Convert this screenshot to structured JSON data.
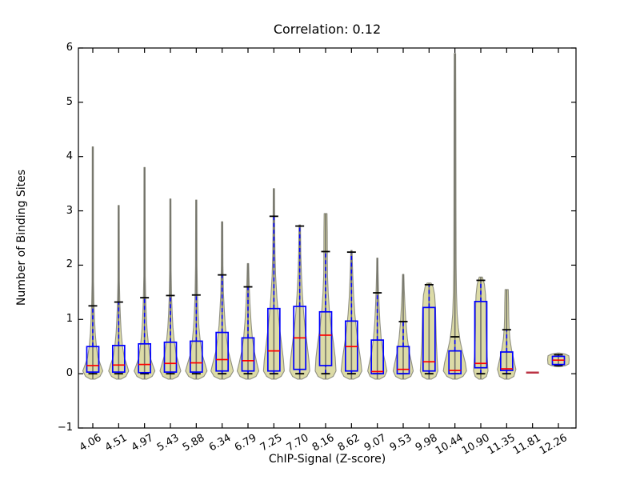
{
  "figure": {
    "title": "Correlation: 0.12",
    "xlabel": "ChIP-Signal (Z-score)",
    "ylabel": "Number of Binding Sites"
  },
  "colors": {
    "violin_fill": "#dcdba6",
    "violin_edge": "#8f8f82",
    "center_line": "#72726a",
    "box": "#0000ff",
    "median": "#ff0000",
    "cap": "#000000",
    "lone_median": "#bb3344",
    "spine": "#000000"
  },
  "chart_data": {
    "type": "violin-box",
    "title": "Correlation: 0.12",
    "xlabel": "ChIP-Signal (Z-score)",
    "ylabel": "Number of Binding Sites",
    "ylim": [
      -1,
      6
    ],
    "yticks": [
      -1,
      0,
      1,
      2,
      3,
      4,
      5,
      6
    ],
    "grid": false,
    "series": [
      {
        "label": "4.06",
        "violin_max": 4.18,
        "whisker_hi": 1.25,
        "q3": 0.5,
        "median": 0.15,
        "q1": 0.03,
        "whisker_lo": 0,
        "profile": [
          [
            -0.1,
            3
          ],
          [
            -0.05,
            9
          ],
          [
            0.05,
            12.5
          ],
          [
            0.15,
            10
          ],
          [
            0.3,
            6.5
          ],
          [
            0.5,
            4.5
          ],
          [
            0.75,
            3
          ],
          [
            1.0,
            2.2
          ],
          [
            1.3,
            1.4
          ],
          [
            1.7,
            0.9
          ],
          [
            2.5,
            0.8
          ],
          [
            4.18,
            0.7
          ]
        ]
      },
      {
        "label": "4.51",
        "violin_max": 3.1,
        "whisker_hi": 1.32,
        "q3": 0.52,
        "median": 0.16,
        "q1": 0.03,
        "whisker_lo": 0,
        "profile": [
          [
            -0.1,
            3
          ],
          [
            -0.05,
            9
          ],
          [
            0.05,
            12.5
          ],
          [
            0.15,
            10.5
          ],
          [
            0.3,
            7
          ],
          [
            0.5,
            4.8
          ],
          [
            0.75,
            3.2
          ],
          [
            1.0,
            2.3
          ],
          [
            1.3,
            1.5
          ],
          [
            1.7,
            0.9
          ],
          [
            2.4,
            0.8
          ],
          [
            3.1,
            0.7
          ]
        ]
      },
      {
        "label": "4.97",
        "violin_max": 3.8,
        "whisker_hi": 1.4,
        "q3": 0.55,
        "median": 0.17,
        "q1": 0.02,
        "whisker_lo": 0,
        "profile": [
          [
            -0.1,
            3
          ],
          [
            -0.05,
            9.5
          ],
          [
            0.05,
            13
          ],
          [
            0.15,
            10.5
          ],
          [
            0.3,
            7
          ],
          [
            0.55,
            4.8
          ],
          [
            0.8,
            3.2
          ],
          [
            1.05,
            2.3
          ],
          [
            1.35,
            1.5
          ],
          [
            1.8,
            0.9
          ],
          [
            2.6,
            0.8
          ],
          [
            3.8,
            0.7
          ]
        ]
      },
      {
        "label": "5.43",
        "violin_max": 3.22,
        "whisker_hi": 1.44,
        "q3": 0.58,
        "median": 0.19,
        "q1": 0.03,
        "whisker_lo": 0,
        "profile": [
          [
            -0.1,
            3
          ],
          [
            -0.05,
            9.5
          ],
          [
            0.05,
            13
          ],
          [
            0.18,
            10.5
          ],
          [
            0.35,
            7.2
          ],
          [
            0.6,
            4.8
          ],
          [
            0.85,
            3.2
          ],
          [
            1.1,
            2.3
          ],
          [
            1.4,
            1.5
          ],
          [
            1.9,
            0.9
          ],
          [
            3.22,
            0.7
          ]
        ]
      },
      {
        "label": "5.88",
        "violin_max": 3.2,
        "whisker_hi": 1.45,
        "q3": 0.6,
        "median": 0.2,
        "q1": 0.03,
        "whisker_lo": 0,
        "profile": [
          [
            -0.1,
            3
          ],
          [
            -0.05,
            9.5
          ],
          [
            0.05,
            13.5
          ],
          [
            0.18,
            11
          ],
          [
            0.35,
            7.5
          ],
          [
            0.6,
            5
          ],
          [
            0.85,
            3.4
          ],
          [
            1.1,
            2.4
          ],
          [
            1.45,
            1.5
          ],
          [
            2.0,
            0.9
          ],
          [
            3.2,
            0.7
          ]
        ]
      },
      {
        "label": "6.34",
        "violin_max": 2.8,
        "whisker_hi": 1.82,
        "q3": 0.76,
        "median": 0.26,
        "q1": 0.05,
        "whisker_lo": 0,
        "profile": [
          [
            -0.1,
            3
          ],
          [
            -0.05,
            10
          ],
          [
            0.05,
            14
          ],
          [
            0.2,
            11.5
          ],
          [
            0.4,
            8
          ],
          [
            0.65,
            5.5
          ],
          [
            0.9,
            3.8
          ],
          [
            1.2,
            2.6
          ],
          [
            1.5,
            1.6
          ],
          [
            2.0,
            1.0
          ],
          [
            2.8,
            0.8
          ]
        ]
      },
      {
        "label": "6.79",
        "violin_max": 2.03,
        "whisker_hi": 1.6,
        "q3": 0.66,
        "median": 0.24,
        "q1": 0.05,
        "whisker_lo": 0,
        "profile": [
          [
            -0.1,
            3
          ],
          [
            -0.05,
            10
          ],
          [
            0.05,
            13.5
          ],
          [
            0.2,
            11
          ],
          [
            0.4,
            8
          ],
          [
            0.65,
            5.5
          ],
          [
            0.95,
            3.8
          ],
          [
            1.25,
            2.6
          ],
          [
            1.55,
            1.7
          ],
          [
            1.8,
            1.2
          ],
          [
            2.03,
            0.8
          ]
        ]
      },
      {
        "label": "7.25",
        "violin_max": 3.41,
        "whisker_hi": 2.9,
        "q3": 1.2,
        "median": 0.42,
        "q1": 0.05,
        "whisker_lo": 0,
        "profile": [
          [
            -0.1,
            3
          ],
          [
            -0.05,
            9
          ],
          [
            0.05,
            13
          ],
          [
            0.25,
            12
          ],
          [
            0.5,
            10
          ],
          [
            0.8,
            7.5
          ],
          [
            1.1,
            5.5
          ],
          [
            1.4,
            3.8
          ],
          [
            1.8,
            2.2
          ],
          [
            2.2,
            1.4
          ],
          [
            2.7,
            1.0
          ],
          [
            3.41,
            0.8
          ]
        ]
      },
      {
        "label": "7.70",
        "violin_max": 2.74,
        "whisker_hi": 2.72,
        "q3": 1.24,
        "median": 0.66,
        "q1": 0.08,
        "whisker_lo": 0,
        "profile": [
          [
            -0.1,
            3
          ],
          [
            -0.05,
            9
          ],
          [
            0.05,
            12.5
          ],
          [
            0.25,
            11.5
          ],
          [
            0.5,
            9.5
          ],
          [
            0.8,
            7
          ],
          [
            1.1,
            5
          ],
          [
            1.45,
            3.4
          ],
          [
            1.8,
            2.2
          ],
          [
            2.2,
            1.3
          ],
          [
            2.74,
            0.9
          ]
        ]
      },
      {
        "label": "8.16",
        "violin_max": 2.95,
        "whisker_hi": 2.25,
        "q3": 1.14,
        "median": 0.71,
        "q1": 0.15,
        "whisker_lo": 0,
        "profile": [
          [
            -0.1,
            3
          ],
          [
            -0.05,
            9.5
          ],
          [
            0.05,
            13
          ],
          [
            0.3,
            12
          ],
          [
            0.55,
            10
          ],
          [
            0.85,
            7
          ],
          [
            1.15,
            4.8
          ],
          [
            1.5,
            3.2
          ],
          [
            1.8,
            2.4
          ],
          [
            2.1,
            2.2
          ],
          [
            2.6,
            2.1
          ],
          [
            2.95,
            1.8
          ]
        ]
      },
      {
        "label": "8.62",
        "violin_max": 2.27,
        "whisker_hi": 2.24,
        "q3": 0.97,
        "median": 0.5,
        "q1": 0.05,
        "whisker_lo": 0,
        "profile": [
          [
            -0.1,
            3
          ],
          [
            -0.05,
            9.5
          ],
          [
            0.05,
            13
          ],
          [
            0.25,
            11.5
          ],
          [
            0.5,
            9
          ],
          [
            0.8,
            6.2
          ],
          [
            1.1,
            4.2
          ],
          [
            1.4,
            2.8
          ],
          [
            1.75,
            1.8
          ],
          [
            2.0,
            1.2
          ],
          [
            2.27,
            0.8
          ]
        ]
      },
      {
        "label": "9.07",
        "violin_max": 2.13,
        "whisker_hi": 1.49,
        "q3": 0.62,
        "median": 0.04,
        "q1": 0.0,
        "whisker_lo": 0,
        "profile": [
          [
            -0.1,
            3
          ],
          [
            -0.05,
            9
          ],
          [
            0.05,
            12
          ],
          [
            0.2,
            10
          ],
          [
            0.4,
            7
          ],
          [
            0.65,
            4.8
          ],
          [
            0.95,
            3.2
          ],
          [
            1.25,
            2.2
          ],
          [
            1.6,
            1.4
          ],
          [
            1.9,
            0.9
          ],
          [
            2.13,
            0.7
          ]
        ]
      },
      {
        "label": "9.53",
        "violin_max": 1.83,
        "whisker_hi": 0.96,
        "q3": 0.5,
        "median": 0.08,
        "q1": 0.0,
        "whisker_lo": 0,
        "profile": [
          [
            -0.1,
            3
          ],
          [
            -0.05,
            9.5
          ],
          [
            0.05,
            12.5
          ],
          [
            0.2,
            10.5
          ],
          [
            0.4,
            7.5
          ],
          [
            0.65,
            5.2
          ],
          [
            0.95,
            3.4
          ],
          [
            1.25,
            2.2
          ],
          [
            1.55,
            1.3
          ],
          [
            1.83,
            0.8
          ]
        ]
      },
      {
        "label": "9.98",
        "violin_max": 1.67,
        "whisker_hi": 1.64,
        "q3": 1.22,
        "median": 0.22,
        "q1": 0.05,
        "whisker_lo": 0,
        "profile": [
          [
            -0.1,
            3
          ],
          [
            -0.05,
            8.5
          ],
          [
            0.05,
            11
          ],
          [
            0.3,
            10
          ],
          [
            0.6,
            9
          ],
          [
            0.9,
            8.5
          ],
          [
            1.2,
            8
          ],
          [
            1.45,
            7
          ],
          [
            1.6,
            5
          ],
          [
            1.67,
            2.5
          ]
        ]
      },
      {
        "label": "10.44",
        "violin_max": 5.9,
        "whisker_hi": 0.68,
        "q3": 0.42,
        "median": 0.06,
        "q1": 0.0,
        "whisker_lo": 0,
        "profile": [
          [
            -0.1,
            3
          ],
          [
            -0.05,
            10
          ],
          [
            0.05,
            14.5
          ],
          [
            0.2,
            13
          ],
          [
            0.4,
            9.5
          ],
          [
            0.6,
            6.5
          ],
          [
            0.85,
            4.2
          ],
          [
            1.1,
            2.8
          ],
          [
            1.5,
            1.9
          ],
          [
            2.0,
            1.5
          ],
          [
            3.0,
            1.3
          ],
          [
            4.0,
            1.2
          ],
          [
            5.0,
            1.1
          ],
          [
            5.9,
            0.9
          ]
        ]
      },
      {
        "label": "10.90",
        "violin_max": 1.78,
        "whisker_hi": 1.72,
        "q3": 1.33,
        "median": 0.19,
        "q1": 0.11,
        "whisker_lo": 0,
        "profile": [
          [
            -0.1,
            2.5
          ],
          [
            -0.05,
            7
          ],
          [
            0.05,
            9
          ],
          [
            0.3,
            8
          ],
          [
            0.6,
            7
          ],
          [
            0.9,
            6.5
          ],
          [
            1.2,
            6.5
          ],
          [
            1.45,
            6
          ],
          [
            1.65,
            4.5
          ],
          [
            1.78,
            2
          ]
        ]
      },
      {
        "label": "11.35",
        "violin_max": 1.55,
        "whisker_hi": 0.81,
        "q3": 0.4,
        "median": 0.09,
        "q1": 0.06,
        "whisker_lo": 0,
        "profile": [
          [
            -0.1,
            3
          ],
          [
            -0.05,
            9
          ],
          [
            0.08,
            11.5
          ],
          [
            0.25,
            9
          ],
          [
            0.45,
            6
          ],
          [
            0.65,
            4
          ],
          [
            0.85,
            3
          ],
          [
            1.05,
            2.6
          ],
          [
            1.3,
            2.4
          ],
          [
            1.55,
            2
          ]
        ]
      },
      {
        "label": "11.81",
        "violin_max": null,
        "whisker_hi": null,
        "q3": null,
        "median": 0.02,
        "q1": null,
        "whisker_lo": null,
        "dash_only": true,
        "profile": []
      },
      {
        "label": "12.26",
        "violin_max": 0.37,
        "whisker_hi": 0.35,
        "q3": 0.32,
        "median": 0.25,
        "q1": 0.17,
        "whisker_lo": 0.15,
        "profile": [
          [
            0.13,
            2
          ],
          [
            0.15,
            9
          ],
          [
            0.18,
            13
          ],
          [
            0.26,
            13.5
          ],
          [
            0.33,
            13
          ],
          [
            0.36,
            9
          ],
          [
            0.38,
            2
          ]
        ]
      }
    ]
  }
}
